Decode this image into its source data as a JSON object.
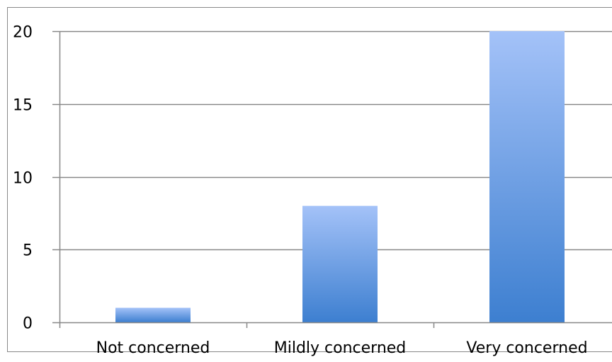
{
  "chart_data": {
    "type": "bar",
    "categories": [
      "Not concerned",
      "Mildly concerned",
      "Very concerned"
    ],
    "values": [
      1,
      8,
      20
    ],
    "ylim": [
      0,
      20
    ],
    "yticks": [
      0,
      5,
      10,
      15,
      20
    ],
    "grid": true,
    "legend": "none",
    "colors": {
      "bar_top": "#a4c2f8",
      "bar_bottom": "#3d7fd0",
      "grid": "#888888",
      "axis": "#888888",
      "frame": "#888888"
    }
  }
}
